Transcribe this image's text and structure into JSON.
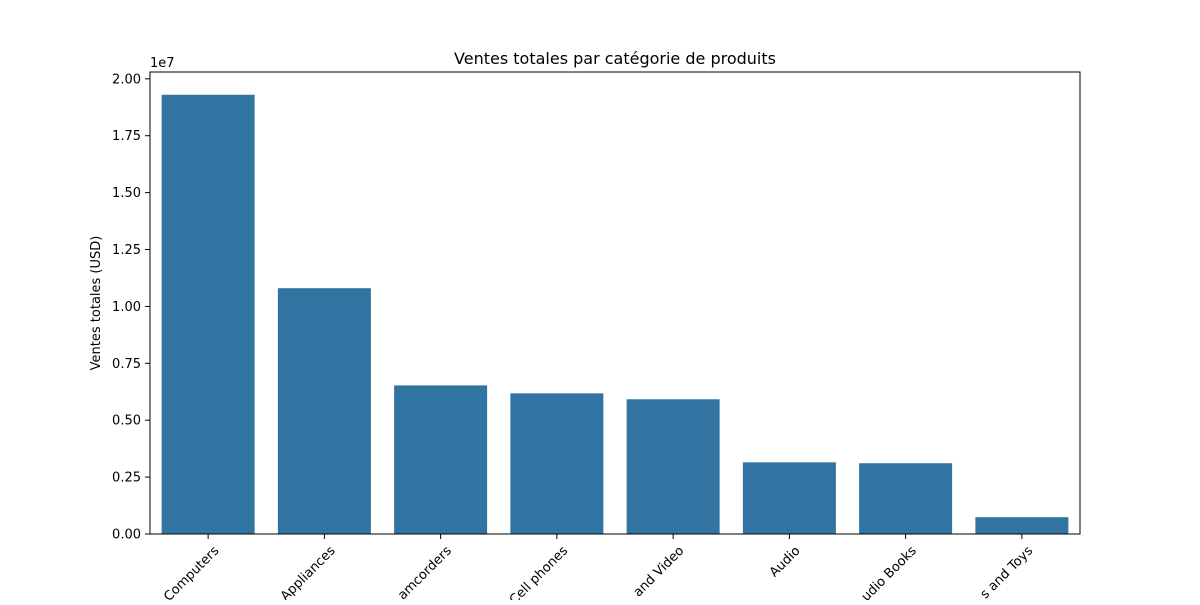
{
  "chart_data": {
    "type": "bar",
    "title": "Ventes totales par catégorie de produits",
    "xlabel": "",
    "ylabel": "Ventes totales (USD)",
    "y_offset_label": "1e7",
    "ylim": [
      0,
      20300000
    ],
    "yticks": [
      0,
      2500000,
      5000000,
      7500000,
      10000000,
      12500000,
      15000000,
      17500000,
      20000000
    ],
    "ytick_labels": [
      "0.00",
      "0.25",
      "0.50",
      "0.75",
      "1.00",
      "1.25",
      "1.50",
      "1.75",
      "2.00"
    ],
    "categories": [
      "Computers",
      "Appliances",
      "amcorders",
      "Cell phones",
      "and Video",
      "Audio",
      "udio Books",
      "s and Toys"
    ],
    "values": [
      19300000,
      10800000,
      6530000,
      6180000,
      5920000,
      3150000,
      3110000,
      740000
    ],
    "bar_color": "#3274a1",
    "grid": false,
    "xtick_rotation": -45
  }
}
